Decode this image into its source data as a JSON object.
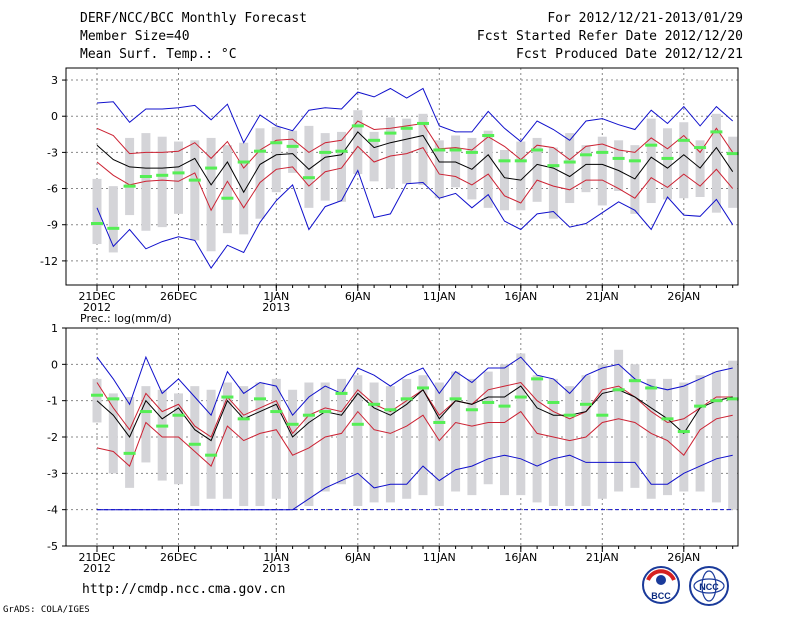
{
  "header": {
    "title": "DERF/NCC/BCC Monthly Forecast",
    "member_size": "Member Size=40",
    "variable": "Mean Surf. Temp.: °C",
    "forecast_for": "For 2012/12/21-2013/01/29",
    "started_refer": "Fcst Started Refer Date 2012/12/20",
    "produced": "Fcst Produced Date 2012/12/21"
  },
  "footer": {
    "url": "http://cmdp.ncc.cma.gov.cn",
    "credit": "GrADS: COLA/IGES",
    "logo_left": "BCC",
    "logo_right": "NCC"
  },
  "colors": {
    "box": "#d4d4d8",
    "mean_line": "#000000",
    "spread_line": "#cc2233",
    "extreme_line": "#1010cc",
    "observation": "#55ee55",
    "grid": "#888888"
  },
  "chart_data": [
    {
      "type": "box",
      "title": "Mean Surf. Temp.: °C",
      "ylim": [
        -14,
        4
      ],
      "yticks": [
        3,
        0,
        -3,
        -6,
        -9,
        -12
      ],
      "x_ticks": [
        {
          "day": 1,
          "label": "21DEC",
          "sub": "2012"
        },
        {
          "day": 6,
          "label": "26DEC",
          "sub": ""
        },
        {
          "day": 12,
          "label": "1JAN",
          "sub": "2013"
        },
        {
          "day": 17,
          "label": "6JAN",
          "sub": ""
        },
        {
          "day": 22,
          "label": "11JAN",
          "sub": ""
        },
        {
          "day": 27,
          "label": "16JAN",
          "sub": ""
        },
        {
          "day": 32,
          "label": "21JAN",
          "sub": ""
        },
        {
          "day": 37,
          "label": "26JAN",
          "sub": ""
        }
      ],
      "max": [
        1.1,
        1.2,
        -0.5,
        0.6,
        0.6,
        0.7,
        0.9,
        -0.3,
        1.0,
        -2.2,
        0.1,
        -0.8,
        -1.2,
        0.5,
        0.7,
        0.6,
        2.0,
        1.6,
        2.3,
        1.5,
        2.3,
        -0.8,
        -1.3,
        -1.3,
        0.4,
        -1.0,
        -2.1,
        -0.4,
        -1.1,
        -2.0,
        -0.4,
        -0.2,
        -0.7,
        -1.1,
        0.5,
        -0.6,
        0.8,
        -0.8,
        0.8,
        -0.4
      ],
      "upper": [
        -1.0,
        -1.6,
        -3.1,
        -3.0,
        -3.0,
        -2.9,
        -2.2,
        -3.5,
        -2.1,
        -4.3,
        -2.8,
        -2.0,
        -1.9,
        -3.0,
        -2.2,
        -2.0,
        -0.4,
        -1.1,
        -1.0,
        -0.8,
        -0.6,
        -2.7,
        -2.6,
        -2.8,
        -1.7,
        -2.5,
        -3.6,
        -2.4,
        -2.6,
        -3.6,
        -2.5,
        -2.3,
        -2.8,
        -3.0,
        -1.8,
        -2.7,
        -1.6,
        -3.0,
        -1.0,
        -3.0
      ],
      "mean": [
        -2.4,
        -3.6,
        -4.2,
        -4.3,
        -4.3,
        -4.2,
        -3.5,
        -5.7,
        -3.8,
        -6.3,
        -4.0,
        -3.2,
        -3.1,
        -4.4,
        -3.4,
        -3.2,
        -1.3,
        -2.6,
        -2.2,
        -1.9,
        -1.6,
        -3.8,
        -3.8,
        -4.4,
        -3.2,
        -5.1,
        -5.3,
        -4.0,
        -4.3,
        -5.0,
        -4.0,
        -4.0,
        -4.5,
        -5.2,
        -3.4,
        -4.3,
        -3.2,
        -4.3,
        -2.6,
        -4.6
      ],
      "lower": [
        -3.8,
        -4.9,
        -5.7,
        -5.4,
        -5.3,
        -5.4,
        -4.7,
        -7.8,
        -5.4,
        -7.6,
        -5.5,
        -4.4,
        -4.2,
        -5.8,
        -4.6,
        -4.3,
        -2.5,
        -3.8,
        -3.3,
        -3.1,
        -2.6,
        -4.8,
        -5.0,
        -5.7,
        -4.8,
        -6.6,
        -7.2,
        -5.3,
        -5.8,
        -6.1,
        -5.3,
        -5.3,
        -6.0,
        -6.8,
        -5.1,
        -5.9,
        -4.8,
        -5.8,
        -4.4,
        -6.0
      ],
      "min": [
        -7.6,
        -10.8,
        -9.4,
        -11.0,
        -10.4,
        -10.0,
        -10.3,
        -12.6,
        -10.7,
        -11.3,
        -8.8,
        -7.0,
        -5.7,
        -9.4,
        -7.5,
        -7.0,
        -4.5,
        -8.4,
        -8.1,
        -5.6,
        -5.5,
        -6.8,
        -6.4,
        -7.6,
        -6.5,
        -8.7,
        -9.4,
        -8.1,
        -7.9,
        -9.2,
        -8.9,
        -8.0,
        -7.1,
        -7.8,
        -9.4,
        -6.7,
        -8.2,
        -8.3,
        -6.9,
        -9.0
      ],
      "box_top": [
        -5.2,
        -5.8,
        -1.8,
        -1.4,
        -1.7,
        -2.1,
        -2.0,
        -1.8,
        -2.4,
        -2.2,
        -1.0,
        -0.9,
        -1.2,
        -0.8,
        -1.4,
        -1.3,
        0.5,
        -1.3,
        -0.1,
        -0.2,
        0.2,
        -2.0,
        -1.6,
        -1.8,
        -1.2,
        -2.8,
        -2.1,
        -1.8,
        -2.6,
        -1.4,
        -2.4,
        -1.7,
        -2.0,
        -2.4,
        -0.2,
        -1.0,
        -0.5,
        -2.0,
        0.2,
        -1.7
      ],
      "box_bottom": [
        -10.6,
        -11.3,
        -8.2,
        -9.5,
        -9.2,
        -8.1,
        -10.3,
        -11.2,
        -9.7,
        -9.8,
        -8.5,
        -6.3,
        -4.7,
        -7.6,
        -7.0,
        -7.1,
        -4.8,
        -5.4,
        -6.0,
        -5.6,
        -5.7,
        -6.8,
        -5.9,
        -6.9,
        -7.6,
        -7.8,
        -7.8,
        -7.1,
        -8.5,
        -7.2,
        -6.3,
        -7.4,
        -6.2,
        -8.1,
        -7.2,
        -6.9,
        -6.8,
        -6.7,
        -8.0,
        -7.6
      ],
      "observed": [
        -8.9,
        -9.3,
        -5.8,
        -5.0,
        -4.9,
        -4.7,
        -5.3,
        -4.3,
        -6.8,
        -3.8,
        -2.9,
        -2.2,
        -2.5,
        -5.1,
        -3.0,
        -2.9,
        -0.8,
        -2.0,
        -1.4,
        -1.0,
        -0.6,
        -2.8,
        -2.8,
        -3.0,
        -1.6,
        -3.7,
        -3.7,
        -2.8,
        -4.1,
        -3.8,
        -3.2,
        -3.0,
        -3.5,
        -3.7,
        -2.4,
        -3.5,
        -2.0,
        -2.6,
        -1.3,
        -3.1
      ]
    },
    {
      "type": "box",
      "title": "Prec.: log(mm/d)",
      "ylim": [
        -5,
        1
      ],
      "yticks": [
        1,
        0,
        -1,
        -2,
        -3,
        -4,
        -5
      ],
      "x_ticks": [
        {
          "day": 1,
          "label": "21DEC",
          "sub": "2012"
        },
        {
          "day": 6,
          "label": "26DEC",
          "sub": ""
        },
        {
          "day": 12,
          "label": "1JAN",
          "sub": "2013"
        },
        {
          "day": 17,
          "label": "6JAN",
          "sub": ""
        },
        {
          "day": 22,
          "label": "11JAN",
          "sub": ""
        },
        {
          "day": 27,
          "label": "16JAN",
          "sub": ""
        },
        {
          "day": 32,
          "label": "21JAN",
          "sub": ""
        },
        {
          "day": 37,
          "label": "26JAN",
          "sub": ""
        }
      ],
      "max": [
        0.2,
        -0.4,
        -1.1,
        0.2,
        -0.8,
        -0.4,
        -0.9,
        -1.4,
        -0.2,
        -0.8,
        -0.5,
        -0.6,
        -1.4,
        -0.9,
        -0.6,
        -0.8,
        -0.1,
        -0.3,
        -0.6,
        -0.3,
        -0.1,
        -0.8,
        -0.2,
        -0.5,
        -0.1,
        -0.1,
        0.2,
        -0.3,
        -0.4,
        -0.8,
        -0.3,
        -0.1,
        0.0,
        -0.4,
        -0.6,
        -0.7,
        -0.6,
        -0.4,
        -0.2,
        -0.1
      ],
      "upper": [
        -0.5,
        -1.2,
        -1.8,
        -0.8,
        -1.3,
        -1.1,
        -1.7,
        -2.0,
        -0.9,
        -1.4,
        -1.2,
        -1.0,
        -1.9,
        -1.4,
        -1.2,
        -1.3,
        -0.7,
        -1.1,
        -1.3,
        -1.0,
        -0.7,
        -1.4,
        -1.0,
        -1.1,
        -0.7,
        -0.6,
        -0.5,
        -1.0,
        -1.3,
        -1.5,
        -1.3,
        -0.7,
        -0.6,
        -0.9,
        -1.3,
        -1.6,
        -1.5,
        -1.2,
        -0.9,
        -0.9
      ],
      "mean": [
        -1.0,
        -1.4,
        -2.0,
        -1.0,
        -1.5,
        -1.2,
        -1.8,
        -2.1,
        -1.0,
        -1.5,
        -1.3,
        -1.1,
        -2.0,
        -1.6,
        -1.3,
        -1.4,
        -0.8,
        -1.2,
        -1.4,
        -1.1,
        -0.7,
        -1.5,
        -1.0,
        -1.1,
        -0.9,
        -0.9,
        -0.6,
        -1.2,
        -1.4,
        -1.4,
        -1.3,
        -0.8,
        -0.7,
        -0.9,
        -1.2,
        -1.5,
        -1.9,
        -1.2,
        -1.0,
        -0.9
      ],
      "lower": [
        -2.3,
        -2.4,
        -2.8,
        -1.6,
        -2.0,
        -2.0,
        -2.4,
        -2.8,
        -1.7,
        -2.1,
        -1.9,
        -1.8,
        -2.5,
        -2.3,
        -2.0,
        -1.9,
        -1.3,
        -1.8,
        -1.9,
        -1.7,
        -1.4,
        -2.1,
        -1.6,
        -1.7,
        -1.6,
        -1.6,
        -1.3,
        -1.9,
        -2.0,
        -2.1,
        -2.0,
        -1.6,
        -1.5,
        -1.6,
        -1.9,
        -2.1,
        -2.5,
        -1.8,
        -1.5,
        -1.4
      ],
      "min": [
        -4.0,
        -4.0,
        -4.0,
        -4.0,
        -4.0,
        -4.0,
        -4.0,
        -4.0,
        -4.0,
        -4.0,
        -4.0,
        -4.0,
        -4.0,
        -3.7,
        -3.4,
        -3.2,
        -3.0,
        -3.4,
        -3.3,
        -3.3,
        -2.8,
        -3.2,
        -2.9,
        -2.8,
        -2.6,
        -2.5,
        -2.6,
        -2.8,
        -2.6,
        -2.5,
        -2.7,
        -2.7,
        -2.7,
        -2.7,
        -3.3,
        -3.3,
        -3.0,
        -2.8,
        -2.6,
        -2.5
      ],
      "box_top": [
        -0.4,
        -0.8,
        -0.9,
        -0.6,
        -0.7,
        -0.8,
        -0.6,
        -0.7,
        -0.5,
        -0.6,
        -0.5,
        -0.4,
        -0.7,
        -0.5,
        -0.5,
        -0.4,
        -0.3,
        -0.5,
        -0.6,
        -0.4,
        -0.3,
        -0.5,
        -0.2,
        -0.4,
        -0.2,
        0.0,
        0.3,
        -0.3,
        -0.4,
        -0.6,
        -0.3,
        0.0,
        0.4,
        0.0,
        -0.4,
        -0.4,
        -0.5,
        -0.3,
        -0.2,
        0.1
      ],
      "box_bottom": [
        -1.6,
        -3.0,
        -3.4,
        -2.7,
        -3.2,
        -3.3,
        -3.9,
        -3.7,
        -3.7,
        -3.9,
        -3.9,
        -3.7,
        -4.0,
        -3.9,
        -3.5,
        -3.3,
        -3.9,
        -3.8,
        -3.8,
        -3.7,
        -3.6,
        -3.9,
        -3.5,
        -3.6,
        -3.3,
        -3.6,
        -3.6,
        -3.8,
        -3.9,
        -3.9,
        -3.9,
        -3.7,
        -3.5,
        -3.4,
        -3.7,
        -3.6,
        -3.5,
        -3.5,
        -3.8,
        -4.0
      ],
      "observed": [
        -0.85,
        -0.95,
        -2.45,
        -1.3,
        -1.7,
        -1.4,
        -2.2,
        -2.5,
        -0.9,
        -1.5,
        -0.95,
        -1.3,
        -1.65,
        -1.4,
        -1.3,
        -0.8,
        -1.65,
        -1.1,
        -1.25,
        -0.95,
        -0.65,
        -1.6,
        -0.95,
        -1.25,
        -1.05,
        -1.15,
        -0.9,
        -0.4,
        -1.05,
        -1.4,
        -1.1,
        -1.4,
        -0.7,
        -0.45,
        -0.65,
        -1.5,
        -1.85,
        -1.15,
        -1.0,
        -0.95
      ]
    }
  ]
}
